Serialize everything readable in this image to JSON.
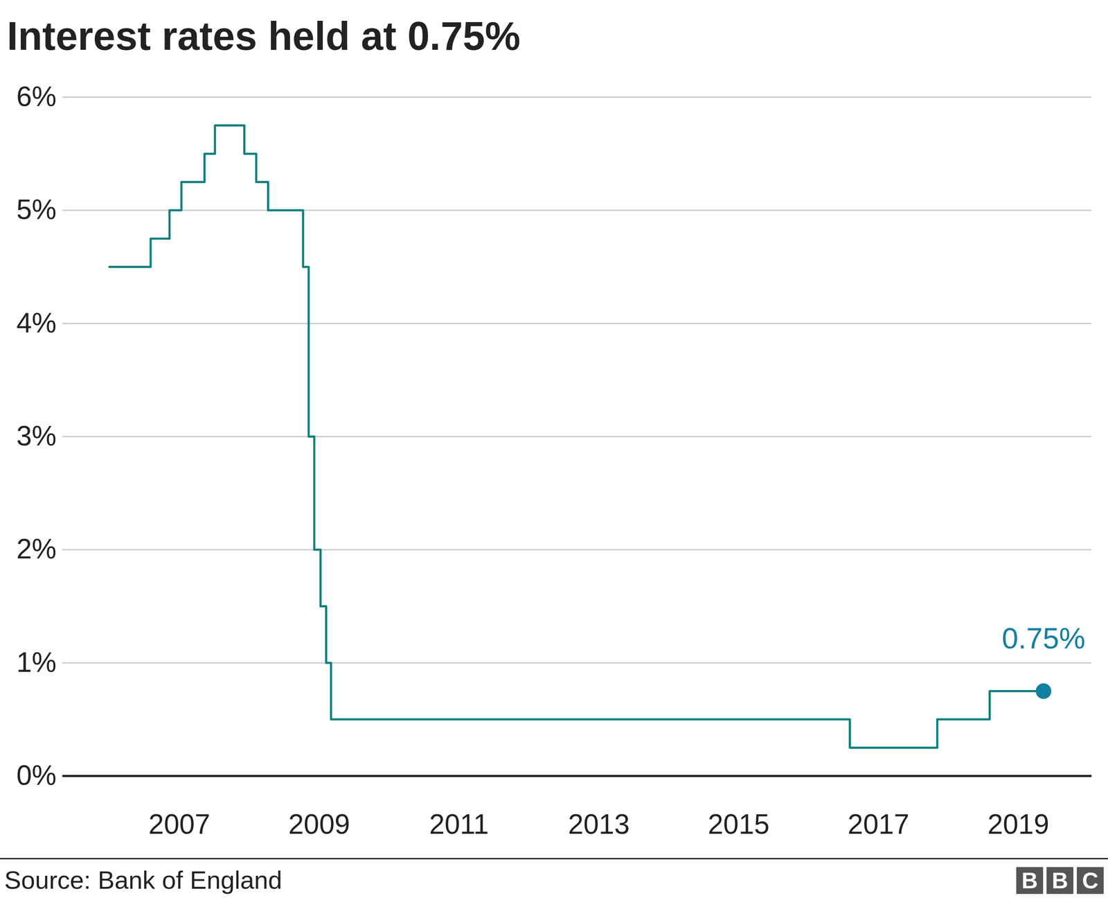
{
  "chart_data": {
    "type": "line",
    "title": "Interest rates held at 0.75%",
    "source": "Source: Bank of England",
    "logo": "BBC",
    "line_style": "step",
    "color": "#12807e",
    "grid": true,
    "x": [
      2006.0,
      2006.59,
      2006.86,
      2007.03,
      2007.36,
      2007.51,
      2007.93,
      2008.1,
      2008.27,
      2008.77,
      2008.85,
      2008.93,
      2009.02,
      2009.1,
      2009.17,
      2016.59,
      2017.84,
      2018.59,
      2019.36
    ],
    "values": [
      4.5,
      4.75,
      5.0,
      5.25,
      5.5,
      5.75,
      5.5,
      5.25,
      5.0,
      4.5,
      3.0,
      2.0,
      1.5,
      1.0,
      0.5,
      0.25,
      0.5,
      0.75,
      0.75
    ],
    "xlim": [
      2005.33,
      2020.05
    ],
    "xticks": [
      2007,
      2009,
      2011,
      2013,
      2015,
      2017,
      2019
    ],
    "ylim": [
      0,
      6
    ],
    "yticks": [
      {
        "value": 0,
        "label": "0%"
      },
      {
        "value": 1,
        "label": "1%"
      },
      {
        "value": 2,
        "label": "2%"
      },
      {
        "value": 3,
        "label": "3%"
      },
      {
        "value": 4,
        "label": "4%"
      },
      {
        "value": 5,
        "label": "5%"
      },
      {
        "value": 6,
        "label": "6%"
      }
    ],
    "annotations": [
      {
        "text": "0.75%",
        "x": 2019.36,
        "y": 0.75,
        "color": "#1380a1"
      }
    ]
  }
}
